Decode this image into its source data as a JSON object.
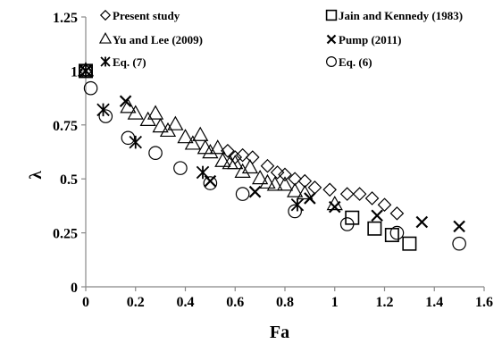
{
  "chart_data": {
    "type": "scatter",
    "title": "",
    "xlabel": "Fa",
    "ylabel": "λ",
    "xlim": [
      0,
      1.6
    ],
    "ylim": [
      0,
      1.25
    ],
    "grid": false,
    "legend_placement": "top",
    "x_ticks": [
      "0",
      "0.2",
      "0.4",
      "0.6",
      "0.8",
      "1",
      "1.2",
      "1.4",
      "1.6"
    ],
    "y_ticks": [
      "0",
      "0.25",
      "0.5",
      "0.75",
      "1",
      "1.25"
    ],
    "series": [
      {
        "name": "Present study",
        "marker": "diamond",
        "points": [
          [
            0,
            1
          ],
          [
            0.57,
            0.63
          ],
          [
            0.6,
            0.6
          ],
          [
            0.63,
            0.61
          ],
          [
            0.67,
            0.6
          ],
          [
            0.73,
            0.56
          ],
          [
            0.77,
            0.53
          ],
          [
            0.8,
            0.52
          ],
          [
            0.84,
            0.5
          ],
          [
            0.88,
            0.49
          ],
          [
            0.92,
            0.46
          ],
          [
            0.98,
            0.45
          ],
          [
            1.05,
            0.43
          ],
          [
            1.1,
            0.43
          ],
          [
            1.15,
            0.41
          ],
          [
            1.2,
            0.38
          ],
          [
            1.25,
            0.34
          ]
        ]
      },
      {
        "name": "Jain and Kennedy (1983)",
        "marker": "square",
        "points": [
          [
            0,
            1
          ],
          [
            1.07,
            0.32
          ],
          [
            1.16,
            0.27
          ],
          [
            1.23,
            0.24
          ],
          [
            1.3,
            0.2
          ]
        ]
      },
      {
        "name": "Yu and Lee (2009)",
        "marker": "triangle",
        "points": [
          [
            0,
            1
          ],
          [
            0.17,
            0.83
          ],
          [
            0.2,
            0.8
          ],
          [
            0.25,
            0.77
          ],
          [
            0.28,
            0.8
          ],
          [
            0.3,
            0.74
          ],
          [
            0.33,
            0.72
          ],
          [
            0.36,
            0.75
          ],
          [
            0.4,
            0.69
          ],
          [
            0.43,
            0.66
          ],
          [
            0.46,
            0.7
          ],
          [
            0.48,
            0.64
          ],
          [
            0.5,
            0.62
          ],
          [
            0.53,
            0.64
          ],
          [
            0.55,
            0.58
          ],
          [
            0.58,
            0.57
          ],
          [
            0.6,
            0.57
          ],
          [
            0.63,
            0.53
          ],
          [
            0.66,
            0.55
          ],
          [
            0.7,
            0.5
          ],
          [
            0.73,
            0.48
          ],
          [
            0.76,
            0.47
          ],
          [
            0.8,
            0.47
          ],
          [
            0.84,
            0.44
          ],
          [
            0.88,
            0.43
          ],
          [
            1,
            0.38
          ]
        ]
      },
      {
        "name": "Pump (2011)",
        "marker": "x",
        "points": [
          [
            0,
            1
          ],
          [
            0.16,
            0.86
          ],
          [
            0.5,
            0.49
          ],
          [
            0.68,
            0.44
          ],
          [
            0.9,
            0.41
          ],
          [
            1,
            0.37
          ],
          [
            1.17,
            0.33
          ],
          [
            1.35,
            0.3
          ],
          [
            1.5,
            0.28
          ]
        ]
      },
      {
        "name": "Eq. (7)",
        "marker": "asterisk",
        "points": [
          [
            0,
            1
          ],
          [
            0.07,
            0.82
          ],
          [
            0.2,
            0.67
          ],
          [
            0.47,
            0.53
          ],
          [
            0.85,
            0.38
          ]
        ]
      },
      {
        "name": "Eq. (6)",
        "marker": "circle",
        "points": [
          [
            0,
            1
          ],
          [
            0.02,
            0.92
          ],
          [
            0.08,
            0.79
          ],
          [
            0.17,
            0.69
          ],
          [
            0.28,
            0.62
          ],
          [
            0.38,
            0.55
          ],
          [
            0.5,
            0.48
          ],
          [
            0.63,
            0.43
          ],
          [
            0.84,
            0.35
          ],
          [
            1.05,
            0.29
          ],
          [
            1.25,
            0.25
          ],
          [
            1.5,
            0.2
          ]
        ]
      }
    ]
  }
}
